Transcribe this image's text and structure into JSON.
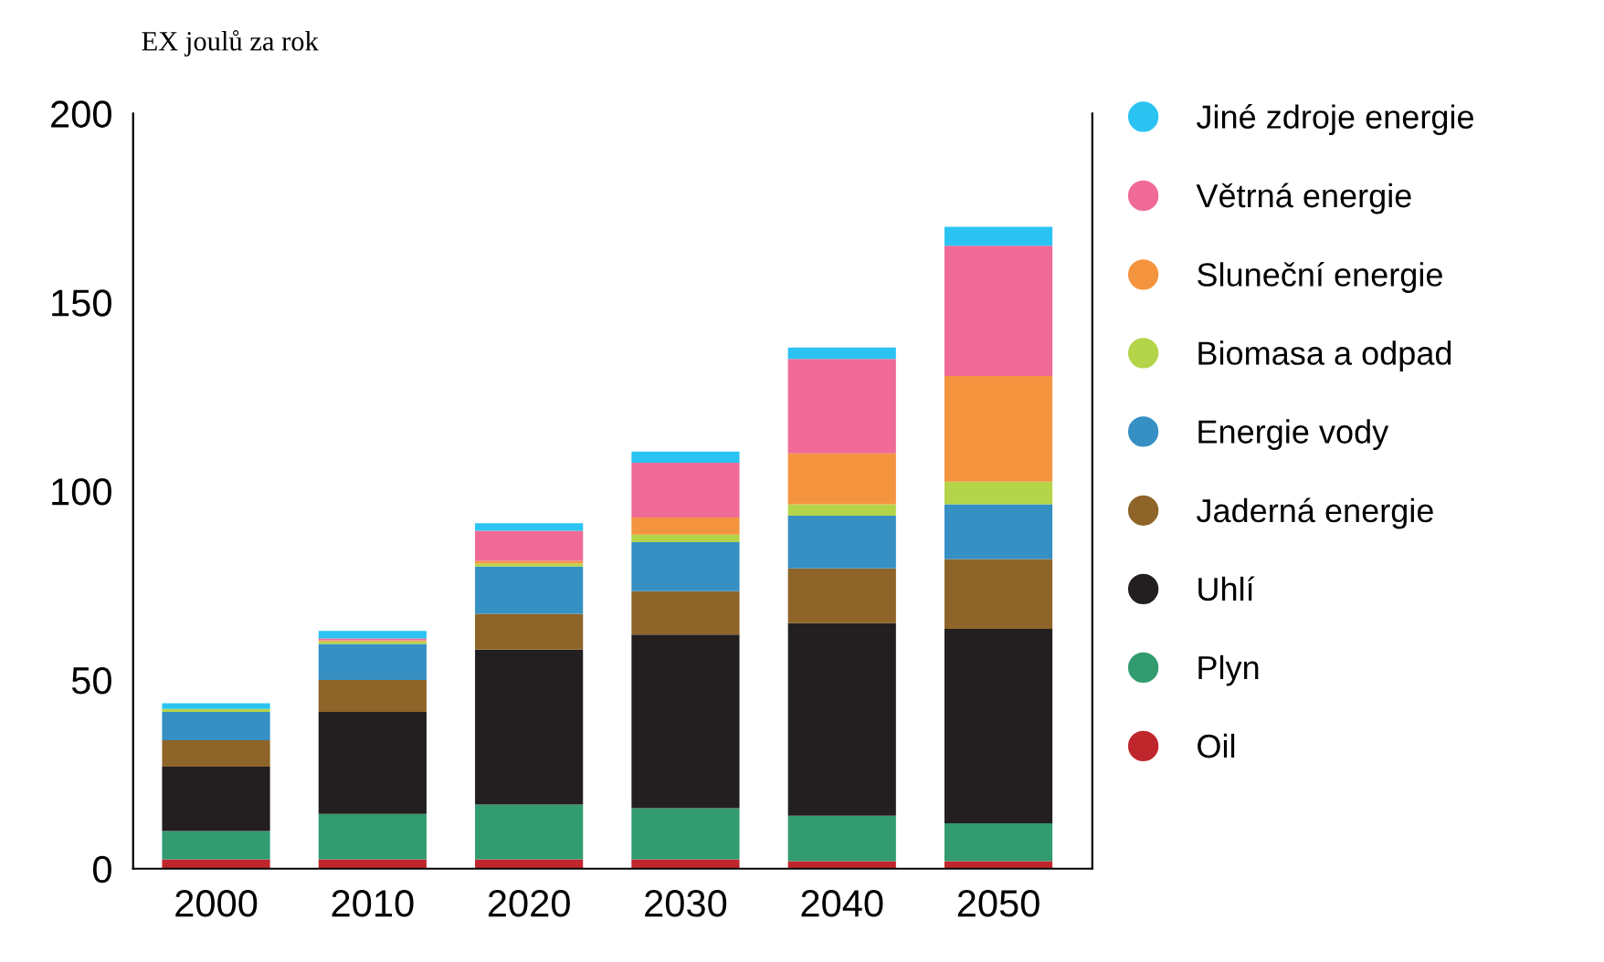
{
  "chart_data": {
    "type": "bar",
    "title": "EX joulů za rok",
    "stacked": true,
    "categories": [
      "2000",
      "2010",
      "2020",
      "2030",
      "2040",
      "2050"
    ],
    "series": [
      {
        "name": "Oil",
        "color": "#c0272d",
        "values": [
          2.5,
          2.5,
          2.5,
          2.5,
          2,
          2
        ]
      },
      {
        "name": "Plyn",
        "color": "#329b70",
        "values": [
          7.5,
          12,
          14.5,
          13.5,
          12,
          10
        ]
      },
      {
        "name": "Uhlí",
        "color": "#231f20",
        "values": [
          17,
          27,
          41,
          46,
          51,
          51.5
        ]
      },
      {
        "name": "Jaderná energie",
        "color": "#8e6429",
        "values": [
          7,
          8.5,
          9.5,
          11.5,
          14.5,
          18.5
        ]
      },
      {
        "name": "Energie vody",
        "color": "#3690c4",
        "values": [
          7.5,
          9.5,
          12.5,
          13,
          14,
          14.5
        ]
      },
      {
        "name": "Biomasa a odpad",
        "color": "#b4d44a",
        "values": [
          0.8,
          0.7,
          0.8,
          2,
          3,
          6
        ]
      },
      {
        "name": "Sluneční energie",
        "color": "#f5943f",
        "values": [
          0,
          0.3,
          0.7,
          4.5,
          13.5,
          28
        ]
      },
      {
        "name": "Větrná energie",
        "color": "#ef6a97",
        "values": [
          0,
          0.5,
          8,
          14.5,
          25,
          34.5
        ]
      },
      {
        "name": "Jiné zdroje energie",
        "color": "#2bc4f2",
        "values": [
          1.5,
          2,
          2,
          3,
          3,
          5
        ]
      }
    ],
    "ylim": [
      0,
      200
    ],
    "yticks": [
      0,
      50,
      100,
      150,
      200
    ],
    "grid": false,
    "legend": "right"
  }
}
